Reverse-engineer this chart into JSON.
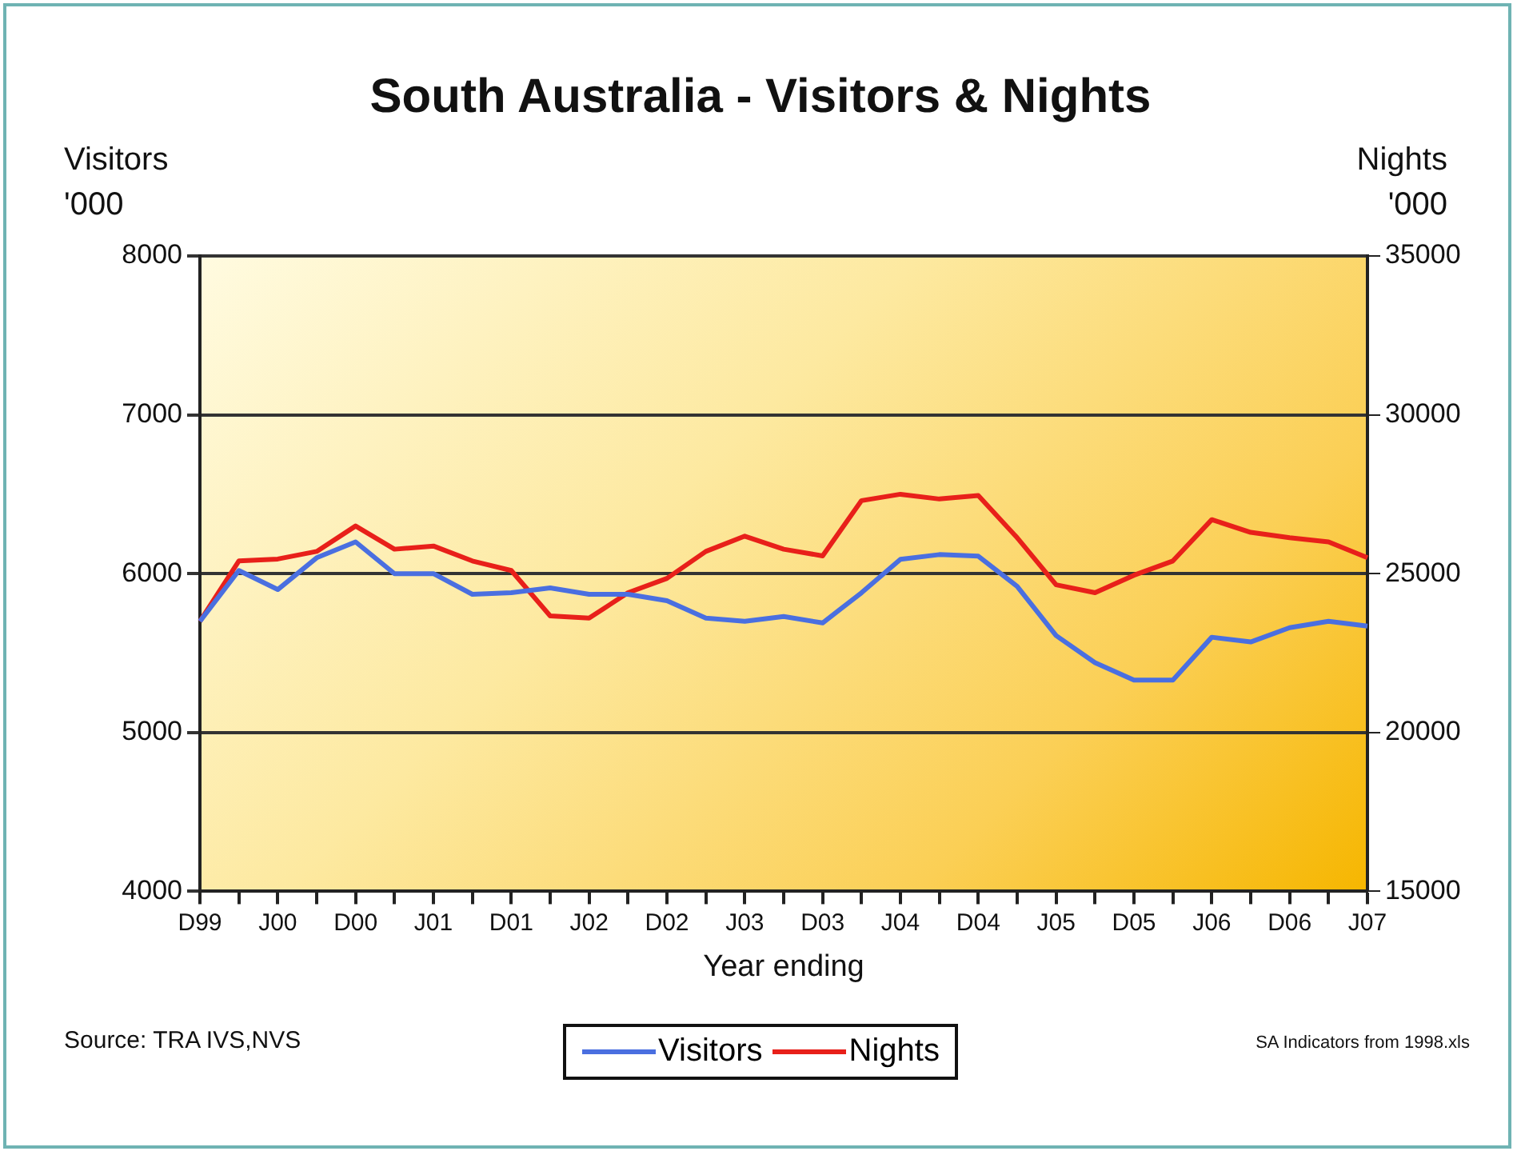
{
  "chart_data": {
    "type": "line",
    "title": "South Australia - Visitors & Nights",
    "xlabel": "Year ending",
    "ylabel": "Visitors\n'000",
    "y2label": "Nights\n'000",
    "categories": [
      "D99",
      null,
      "J00",
      null,
      "D00",
      null,
      "J01",
      null,
      "D01",
      null,
      "J02",
      null,
      "D02",
      null,
      "J03",
      null,
      "D03",
      null,
      "J04",
      null,
      "D04",
      null,
      "J05",
      null,
      "D05",
      null,
      "J06",
      null,
      "D06",
      null,
      "J07"
    ],
    "series": [
      {
        "name": "Visitors",
        "color": "#4a6fe0",
        "values": [
          5700,
          6020,
          5900,
          6100,
          6200,
          6000,
          6000,
          5870,
          5880,
          5910,
          5870,
          5870,
          5830,
          5720,
          5700,
          5730,
          5690,
          5880,
          6090,
          6120,
          6110,
          5920,
          5610,
          5440,
          5330,
          5330,
          5600,
          5570,
          5660,
          5700,
          5670
        ]
      },
      {
        "name": "Nights",
        "color": "#e8201a",
        "axis": "y2",
        "values": [
          23500,
          25400,
          25460,
          25700,
          26500,
          25770,
          25870,
          25400,
          25100,
          23670,
          23600,
          24400,
          24850,
          25700,
          26180,
          25770,
          25560,
          27300,
          27500,
          27350,
          27460,
          26130,
          24650,
          24400,
          24950,
          25400,
          26700,
          26300,
          26130,
          26000,
          25500
        ]
      }
    ],
    "ylim": [
      4000,
      8000
    ],
    "yticks": [
      4000,
      5000,
      6000,
      7000,
      8000
    ],
    "y2lim": [
      15000,
      35000
    ],
    "y2ticks": [
      15000,
      20000,
      25000,
      30000,
      35000
    ],
    "grid": "y",
    "line_style": "solid",
    "legend": "bottom",
    "annotations": [
      "Source: TRA IVS,NVS",
      "SA Indicators from 1998.xls"
    ]
  }
}
